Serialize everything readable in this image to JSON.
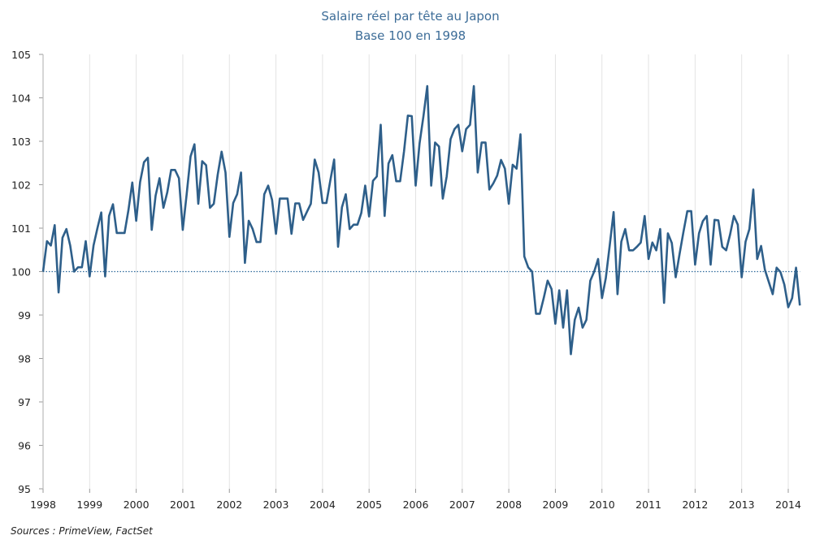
{
  "chart_data": {
    "type": "line",
    "title": "Salaire réel par tête au Japon",
    "subtitle": "Base 100 en 1998",
    "xlabel": "",
    "ylabel": "",
    "x_start": "1998-01",
    "x_frequency": "monthly",
    "xlim": [
      1998,
      2014
    ],
    "ylim": [
      95,
      105
    ],
    "x_ticks": [
      "1998",
      "1999",
      "2000",
      "2001",
      "2002",
      "2003",
      "2004",
      "2005",
      "2006",
      "2007",
      "2008",
      "2009",
      "2010",
      "2011",
      "2012",
      "2013",
      "2014"
    ],
    "y_ticks": [
      "95",
      "96",
      "97",
      "98",
      "99",
      "100",
      "101",
      "102",
      "103",
      "104",
      "105"
    ],
    "reference_line": 100,
    "grid": "vertical",
    "line_color": "#2e5f8a",
    "series": [
      {
        "values": [
          100.0,
          100.7,
          100.6,
          101.07,
          99.52,
          100.78,
          100.98,
          100.6,
          100.0,
          100.1,
          100.1,
          100.7,
          99.89,
          100.6,
          101.0,
          101.36,
          99.89,
          101.28,
          101.55,
          100.89,
          100.89,
          100.89,
          101.42,
          102.05,
          101.17,
          102.06,
          102.52,
          102.62,
          100.96,
          101.75,
          102.15,
          101.47,
          101.82,
          102.34,
          102.34,
          102.15,
          100.96,
          101.78,
          102.65,
          102.93,
          101.56,
          102.54,
          102.45,
          101.47,
          101.56,
          102.23,
          102.76,
          102.28,
          100.8,
          101.58,
          101.78,
          102.28,
          100.2,
          101.17,
          100.98,
          100.68,
          100.68,
          101.78,
          101.98,
          101.65,
          100.87,
          101.68,
          101.68,
          101.68,
          100.87,
          101.57,
          101.57,
          101.19,
          101.38,
          101.56,
          102.58,
          102.28,
          101.58,
          101.58,
          102.09,
          102.58,
          100.57,
          101.48,
          101.78,
          100.98,
          101.08,
          101.08,
          101.35,
          101.98,
          101.27,
          102.09,
          102.19,
          103.38,
          101.28,
          102.49,
          102.68,
          102.08,
          102.08,
          102.77,
          103.59,
          103.58,
          101.98,
          102.95,
          103.58,
          104.27,
          101.98,
          102.97,
          102.88,
          101.68,
          102.19,
          103.05,
          103.28,
          103.38,
          102.77,
          103.28,
          103.38,
          104.27,
          102.28,
          102.97,
          102.97,
          101.89,
          102.03,
          102.21,
          102.57,
          102.37,
          101.56,
          102.46,
          102.37,
          103.16,
          100.35,
          100.1,
          100.0,
          99.03,
          99.03,
          99.39,
          99.79,
          99.6,
          98.8,
          99.57,
          98.71,
          99.57,
          98.1,
          98.89,
          99.17,
          98.71,
          98.89,
          99.79,
          100.0,
          100.29,
          99.39,
          99.85,
          100.6,
          101.37,
          99.48,
          100.69,
          100.98,
          100.49,
          100.49,
          100.57,
          100.67,
          101.28,
          100.29,
          100.67,
          100.49,
          100.98,
          99.28,
          100.88,
          100.66,
          99.87,
          100.41,
          100.91,
          101.39,
          101.39,
          100.16,
          100.88,
          101.16,
          101.28,
          100.16,
          101.19,
          101.18,
          100.57,
          100.49,
          100.85,
          101.28,
          101.08,
          99.87,
          100.69,
          100.98,
          101.89,
          100.29,
          100.59,
          100.04,
          99.76,
          99.48,
          100.09,
          99.99,
          99.7,
          99.18,
          99.39,
          100.09,
          99.22
        ]
      }
    ]
  },
  "source": "Sources : PrimeView, FactSet"
}
